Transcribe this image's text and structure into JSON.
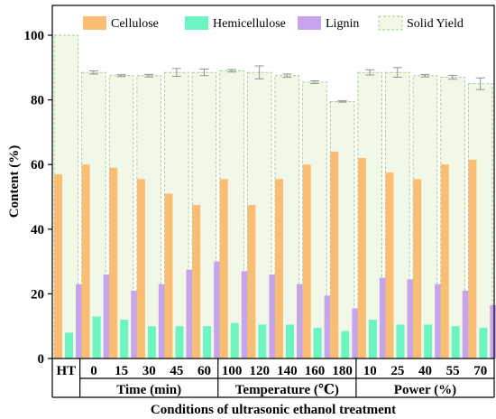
{
  "chart_data": {
    "type": "bar",
    "ylabel": "Content (%)",
    "xlabel": "Conditions of ultrasonic ethanol treatment",
    "ylim": [
      0,
      100
    ],
    "yticks": [
      0,
      20,
      40,
      60,
      80,
      100
    ],
    "legend_position": "top",
    "categories": [
      "HT",
      "0",
      "15",
      "30",
      "45",
      "60",
      "100",
      "120",
      "140",
      "160",
      "180",
      "10",
      "25",
      "40",
      "55",
      "70"
    ],
    "groups": [
      {
        "label": "Time (min)",
        "categories": [
          "0",
          "15",
          "30",
          "45",
          "60"
        ]
      },
      {
        "label": "Temperature (℃)",
        "categories": [
          "100",
          "120",
          "140",
          "160",
          "180"
        ]
      },
      {
        "label": "Power (%)",
        "categories": [
          "10",
          "25",
          "40",
          "55",
          "70"
        ]
      }
    ],
    "series": [
      {
        "name": "Cellulose",
        "color": "#f9bd73",
        "values": [
          57,
          60,
          59,
          55.5,
          51,
          47.5,
          55.5,
          47.5,
          55.5,
          60,
          64,
          62,
          57.5,
          55.5,
          60,
          61.5
        ]
      },
      {
        "name": "Hemicellulose",
        "color": "#6cf5c0",
        "values": [
          8,
          13,
          12,
          10,
          10,
          10,
          11,
          10.5,
          10.5,
          9.5,
          8.5,
          12,
          10.5,
          10.5,
          10,
          9.5
        ]
      },
      {
        "name": "Lignin",
        "color": "#c8a4ef",
        "values": [
          23,
          26,
          21,
          23,
          27.5,
          30,
          27,
          26,
          23,
          19.5,
          15.5,
          25,
          24.5,
          23,
          21,
          16.5
        ]
      },
      {
        "name": "Solid Yield",
        "color": "#f2f8e8",
        "values": [
          100,
          88.5,
          87.5,
          87.5,
          88.5,
          88.5,
          89,
          88.5,
          87.5,
          85.5,
          79.5,
          88.5,
          88.5,
          87.5,
          87,
          85
        ],
        "errors": [
          0,
          0.5,
          0.3,
          0.4,
          1.2,
          1,
          0.4,
          2,
          0.5,
          0.4,
          0.2,
          0.8,
          1.5,
          0.4,
          0.6,
          1.8
        ]
      }
    ]
  }
}
